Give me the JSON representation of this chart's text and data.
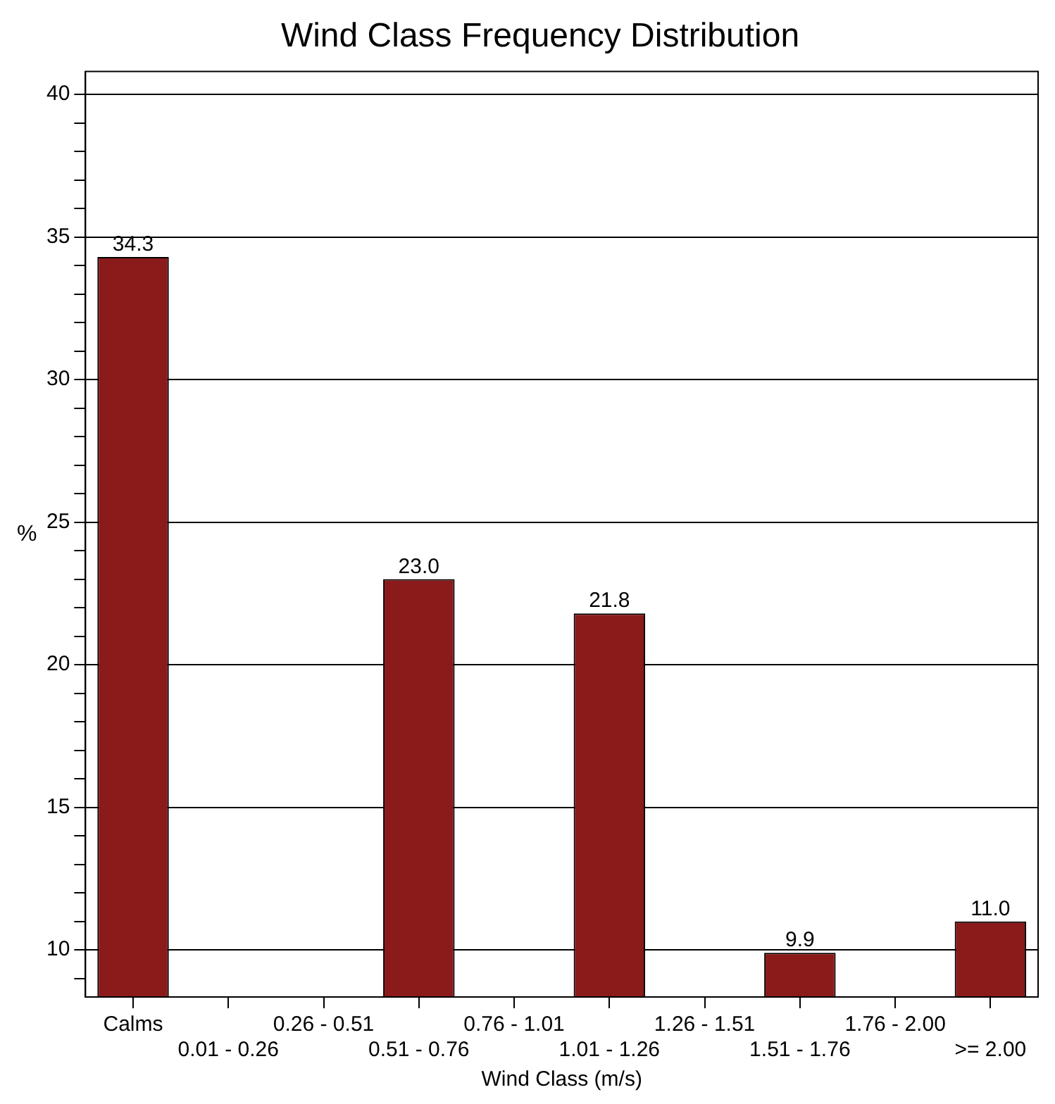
{
  "chart_data": {
    "type": "bar",
    "title": "Wind Class Frequency Distribution",
    "xlabel": "Wind Class (m/s)",
    "ylabel": "%",
    "categories": [
      "Calms",
      "0.01 - 0.26",
      "0.26 - 0.51",
      "0.51 - 0.76",
      "0.76 - 1.01",
      "1.01 - 1.26",
      "1.26 - 1.51",
      "1.51 - 1.76",
      "1.76 - 2.00",
      ">= 2.00"
    ],
    "values": [
      34.3,
      null,
      null,
      23.0,
      null,
      21.8,
      null,
      9.9,
      null,
      11.0
    ],
    "value_labels": [
      "34.3",
      null,
      null,
      "23.0",
      null,
      "21.8",
      null,
      "9.9",
      null,
      "11.0"
    ],
    "color": "#8b1a1a",
    "ylim": [
      8.35,
      40.8
    ],
    "yticks": [
      {
        "value": 9,
        "label": null
      },
      10,
      {
        "value": 11,
        "label": null
      },
      {
        "value": 12,
        "label": null
      },
      {
        "value": 13,
        "label": null
      },
      {
        "value": 14,
        "label": null
      },
      15,
      {
        "value": 16,
        "label": null
      },
      {
        "value": 17,
        "label": null
      },
      {
        "value": 18,
        "label": null
      },
      {
        "value": 19,
        "label": null
      },
      20,
      {
        "value": 21,
        "label": null
      },
      {
        "value": 22,
        "label": null
      },
      {
        "value": 23,
        "label": null
      },
      {
        "value": 24,
        "label": null
      },
      25,
      {
        "value": 26,
        "label": null
      },
      {
        "value": 27,
        "label": null
      },
      {
        "value": 28,
        "label": null
      },
      {
        "value": 29,
        "label": null
      },
      30,
      {
        "value": 31,
        "label": null
      },
      {
        "value": 32,
        "label": null
      },
      {
        "value": 33,
        "label": null
      },
      {
        "value": 34,
        "label": null
      },
      35,
      {
        "value": 36,
        "label": null
      },
      {
        "value": 37,
        "label": null
      },
      {
        "value": 38,
        "label": null
      },
      {
        "value": 39,
        "label": null
      },
      40
    ],
    "grid": "y"
  }
}
